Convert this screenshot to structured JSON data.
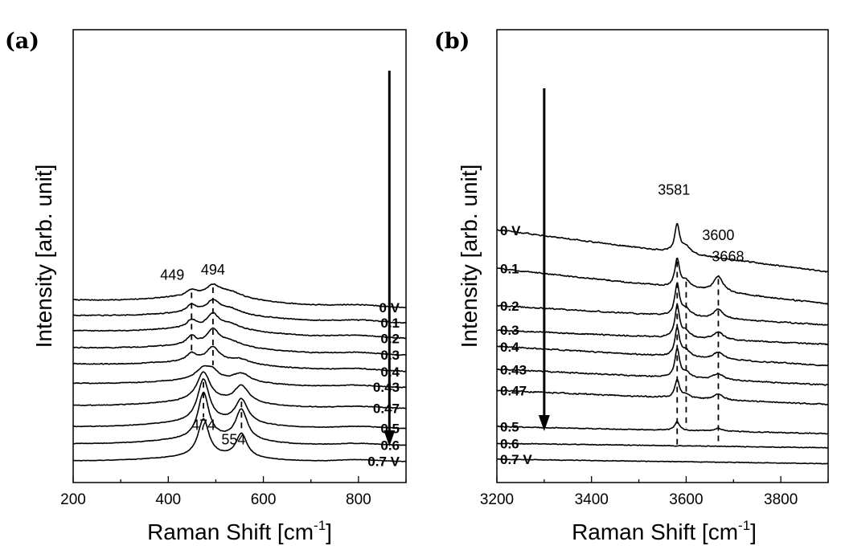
{
  "chart_data": [
    {
      "type": "line",
      "panel_label": "(a)",
      "xlabel": "Raman Shift",
      "xlabel_unit_base": "[cm",
      "xlabel_unit_exp": "-1",
      "xlabel_unit_close": "]",
      "ylabel": "Intensity [arb. unit]",
      "xlim": [
        200,
        900
      ],
      "x_ticks": [
        200,
        400,
        600,
        800
      ],
      "x_tick_labels": [
        "200",
        "400",
        "600",
        "800"
      ],
      "y_ticks_shown": false,
      "grid": false,
      "series": [
        {
          "name": "0 V",
          "peaks": [
            {
              "x": 449,
              "h": 0.35,
              "w": 14
            },
            {
              "x": 494,
              "h": 0.6,
              "w": 18
            },
            {
              "x": 530,
              "h": 0.35,
              "w": 30
            }
          ],
          "baseline_start": 0.5,
          "baseline_end": 0.05,
          "hump": 0.35,
          "noise": 0.06,
          "offset": 9.0
        },
        {
          "name": "0.1",
          "peaks": [
            {
              "x": 449,
              "h": 0.45,
              "w": 12
            },
            {
              "x": 494,
              "h": 0.7,
              "w": 16
            },
            {
              "x": 530,
              "h": 0.3,
              "w": 28
            }
          ],
          "baseline_start": 0.5,
          "baseline_end": 0.05,
          "hump": 0.3,
          "noise": 0.06,
          "offset": 8.1
        },
        {
          "name": "0.2",
          "peaks": [
            {
              "x": 449,
              "h": 0.45,
              "w": 12
            },
            {
              "x": 494,
              "h": 0.8,
              "w": 15
            },
            {
              "x": 530,
              "h": 0.3,
              "w": 28
            }
          ],
          "baseline_start": 0.5,
          "baseline_end": 0.05,
          "hump": 0.3,
          "noise": 0.06,
          "offset": 7.2
        },
        {
          "name": "0.3",
          "peaks": [
            {
              "x": 449,
              "h": 0.5,
              "w": 12
            },
            {
              "x": 494,
              "h": 0.9,
              "w": 15
            },
            {
              "x": 530,
              "h": 0.3,
              "w": 28
            }
          ],
          "baseline_start": 0.5,
          "baseline_end": 0.05,
          "hump": 0.3,
          "noise": 0.06,
          "offset": 6.2
        },
        {
          "name": "0.4",
          "peaks": [
            {
              "x": 449,
              "h": 0.45,
              "w": 12
            },
            {
              "x": 494,
              "h": 0.85,
              "w": 16
            },
            {
              "x": 550,
              "h": 0.25,
              "w": 25
            }
          ],
          "baseline_start": 0.5,
          "baseline_end": 0.05,
          "hump": 0.3,
          "noise": 0.06,
          "offset": 5.25
        },
        {
          "name": "0.43",
          "peaks": [
            {
              "x": 474,
              "h": 0.7,
              "w": 20
            },
            {
              "x": 494,
              "h": 0.4,
              "w": 14
            },
            {
              "x": 554,
              "h": 0.5,
              "w": 22
            }
          ],
          "baseline_start": 0.3,
          "baseline_end": 0.05,
          "hump": 0.25,
          "noise": 0.05,
          "offset": 4.3
        },
        {
          "name": "0.47",
          "peaks": [
            {
              "x": 474,
              "h": 1.7,
              "w": 17
            },
            {
              "x": 554,
              "h": 1.0,
              "w": 18
            }
          ],
          "baseline_start": 0.2,
          "baseline_end": 0.02,
          "hump": 0.3,
          "noise": 0.05,
          "offset": 3.1
        },
        {
          "name": "0.5",
          "peaks": [
            {
              "x": 474,
              "h": 2.5,
              "w": 15
            },
            {
              "x": 554,
              "h": 1.4,
              "w": 16
            }
          ],
          "baseline_start": 0.1,
          "baseline_end": 0.0,
          "hump": 0.3,
          "noise": 0.04,
          "offset": 1.95
        },
        {
          "name": "0.6",
          "peaks": [
            {
              "x": 474,
              "h": 2.7,
              "w": 14
            },
            {
              "x": 554,
              "h": 1.8,
              "w": 15
            }
          ],
          "baseline_start": 0.1,
          "baseline_end": 0.0,
          "hump": 0.3,
          "noise": 0.04,
          "offset": 0.95
        },
        {
          "name": "0.7 V",
          "peaks": [
            {
              "x": 474,
              "h": 2.2,
              "w": 14
            },
            {
              "x": 554,
              "h": 1.4,
              "w": 14
            }
          ],
          "baseline_start": 0.05,
          "baseline_end": 0.0,
          "hump": 0.25,
          "noise": 0.03,
          "offset": 0.0
        }
      ],
      "annotations": [
        {
          "text": "494",
          "x": 494,
          "dashed": true,
          "dash_from": 0,
          "dash_to": 5
        },
        {
          "text": "449",
          "x": 449,
          "dashed": true,
          "dash_from": 0,
          "dash_to": 4
        },
        {
          "text": "474",
          "x": 474,
          "dashed": true,
          "dash_from": 7,
          "dash_to": 9
        },
        {
          "text": "554",
          "x": 554,
          "dashed": true,
          "dash_from": 7,
          "dash_to": 9
        }
      ],
      "arrow": {
        "x": 865,
        "direction": "down"
      }
    },
    {
      "type": "line",
      "panel_label": "(b)",
      "xlabel": "Raman Shift",
      "xlabel_unit_base": "[cm",
      "xlabel_unit_exp": "-1",
      "xlabel_unit_close": "]",
      "ylabel": "Intensity [arb. unit]",
      "xlim": [
        3200,
        3900
      ],
      "x_ticks": [
        3200,
        3400,
        3600,
        3800
      ],
      "x_tick_labels": [
        "3200",
        "3400",
        "3600",
        "3800"
      ],
      "y_ticks_shown": false,
      "grid": false,
      "series": [
        {
          "name": "0 V",
          "peaks": [
            {
              "x": 3581,
              "h": 1.6,
              "w": 6
            },
            {
              "x": 3600,
              "h": 0.4,
              "w": 10
            }
          ],
          "baseline_start": 3.0,
          "baseline_end": 0.6,
          "noise": 0.08,
          "offset": 10.5
        },
        {
          "name": "0.1",
          "peaks": [
            {
              "x": 3581,
              "h": 1.6,
              "w": 6
            },
            {
              "x": 3600,
              "h": 0.4,
              "w": 10
            },
            {
              "x": 3668,
              "h": 0.9,
              "w": 12
            }
          ],
          "baseline_start": 2.3,
          "baseline_end": 0.3,
          "noise": 0.08,
          "offset": 9.0
        },
        {
          "name": "0.2",
          "peaks": [
            {
              "x": 3581,
              "h": 1.8,
              "w": 6
            },
            {
              "x": 3600,
              "h": 0.4,
              "w": 10
            },
            {
              "x": 3668,
              "h": 0.5,
              "w": 12
            }
          ],
          "baseline_start": 1.4,
          "baseline_end": 0.3,
          "noise": 0.08,
          "offset": 7.8
        },
        {
          "name": "0.3",
          "peaks": [
            {
              "x": 3581,
              "h": 1.8,
              "w": 6
            },
            {
              "x": 3600,
              "h": 0.35,
              "w": 10
            },
            {
              "x": 3668,
              "h": 0.45,
              "w": 12
            }
          ],
          "baseline_start": 1.1,
          "baseline_end": 0.3,
          "noise": 0.08,
          "offset": 6.7
        },
        {
          "name": "0.4",
          "peaks": [
            {
              "x": 3581,
              "h": 1.6,
              "w": 6
            },
            {
              "x": 3600,
              "h": 0.35,
              "w": 10
            },
            {
              "x": 3668,
              "h": 0.4,
              "w": 12
            }
          ],
          "baseline_start": 1.4,
          "baseline_end": 0.3,
          "noise": 0.08,
          "offset": 5.5
        },
        {
          "name": "0.43",
          "peaks": [
            {
              "x": 3581,
              "h": 1.6,
              "w": 6
            },
            {
              "x": 3600,
              "h": 0.3,
              "w": 10
            },
            {
              "x": 3668,
              "h": 0.35,
              "w": 12
            }
          ],
          "baseline_start": 1.2,
          "baseline_end": 0.3,
          "noise": 0.08,
          "offset": 4.4
        },
        {
          "name": "0.47",
          "peaks": [
            {
              "x": 3581,
              "h": 1.0,
              "w": 6
            },
            {
              "x": 3600,
              "h": 0.2,
              "w": 10
            },
            {
              "x": 3668,
              "h": 0.3,
              "w": 12
            }
          ],
          "baseline_start": 1.1,
          "baseline_end": 0.3,
          "noise": 0.08,
          "offset": 3.3
        },
        {
          "name": "0.5",
          "peaks": [
            {
              "x": 3581,
              "h": 0.5,
              "w": 6
            },
            {
              "x": 3668,
              "h": 0.15,
              "w": 12
            }
          ],
          "baseline_start": 0.5,
          "baseline_end": 0.1,
          "noise": 0.06,
          "offset": 1.85
        },
        {
          "name": "0.6",
          "peaks": [],
          "baseline_start": 0.35,
          "baseline_end": 0.1,
          "noise": 0.05,
          "offset": 1.05
        },
        {
          "name": "0.7 V",
          "peaks": [],
          "baseline_start": 0.25,
          "baseline_end": 0.0,
          "noise": 0.04,
          "offset": 0.25
        }
      ],
      "annotations": [
        {
          "text": "3581",
          "x": 3581,
          "dashed": true,
          "dash_from": 1,
          "dash_to": 8
        },
        {
          "text": "3600",
          "x": 3600,
          "dashed": true,
          "dash_from": 1,
          "dash_to": 7
        },
        {
          "text": "3668",
          "x": 3668,
          "dashed": true,
          "dash_from": 1,
          "dash_to": 8
        }
      ],
      "arrow": {
        "x": 3300,
        "direction": "down"
      }
    }
  ]
}
